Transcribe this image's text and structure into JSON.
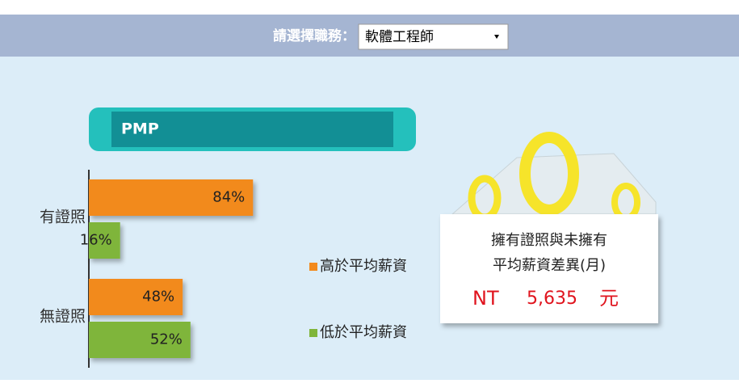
{
  "header": {
    "label": "請選擇職務：",
    "selected": "軟體工程師"
  },
  "chart_data": {
    "type": "bar",
    "orientation": "horizontal",
    "title": "PMP",
    "categories": [
      "有證照",
      "無證照"
    ],
    "series": [
      {
        "name": "高於平均薪資",
        "color": "#f28a1e",
        "values": [
          84,
          48
        ],
        "value_labels": [
          "84%",
          "48%"
        ]
      },
      {
        "name": "低於平均薪資",
        "color": "#7fb53a",
        "values": [
          16,
          52
        ],
        "value_labels": [
          "16%",
          "52%"
        ]
      }
    ],
    "xlim": [
      0,
      100
    ]
  },
  "callout": {
    "lines": [
      "擁有證照與未擁有",
      "平均薪資差異(月)"
    ],
    "prefix": "NT",
    "amount": "5,635",
    "unit": "元"
  }
}
